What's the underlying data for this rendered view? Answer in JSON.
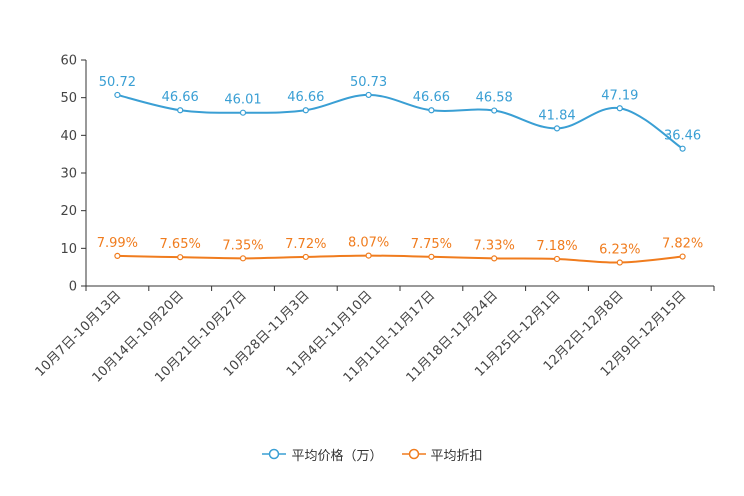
{
  "chart_data": {
    "type": "line",
    "categories": [
      "10月7日-10月13日",
      "10月14日-10月20日",
      "10月21日-10月27日",
      "10月28日-11月3日",
      "11月4日-11月10日",
      "11月11日-11月17日",
      "11月18日-11月24日",
      "11月25日-12月1日",
      "12月2日-12月8日",
      "12月9日-12月15日"
    ],
    "ylim": [
      0,
      60
    ],
    "yticks": [
      0,
      10,
      20,
      30,
      40,
      50,
      60
    ],
    "series": [
      {
        "name": "平均价格（万）",
        "color": "#3a9fd4",
        "values": [
          50.72,
          46.66,
          46.01,
          46.66,
          50.73,
          46.66,
          46.58,
          41.84,
          47.19,
          36.46
        ],
        "labels": [
          "50.72",
          "46.66",
          "46.01",
          "46.66",
          "50.73",
          "46.66",
          "46.58",
          "41.84",
          "47.19",
          "36.46"
        ]
      },
      {
        "name": "平均折扣",
        "color": "#f07c1e",
        "values": [
          7.99,
          7.65,
          7.35,
          7.72,
          8.07,
          7.75,
          7.33,
          7.18,
          6.23,
          7.82
        ],
        "labels": [
          "7.99%",
          "7.65%",
          "7.35%",
          "7.72%",
          "8.07%",
          "7.75%",
          "7.33%",
          "7.18%",
          "6.23%",
          "7.82%"
        ]
      }
    ]
  }
}
